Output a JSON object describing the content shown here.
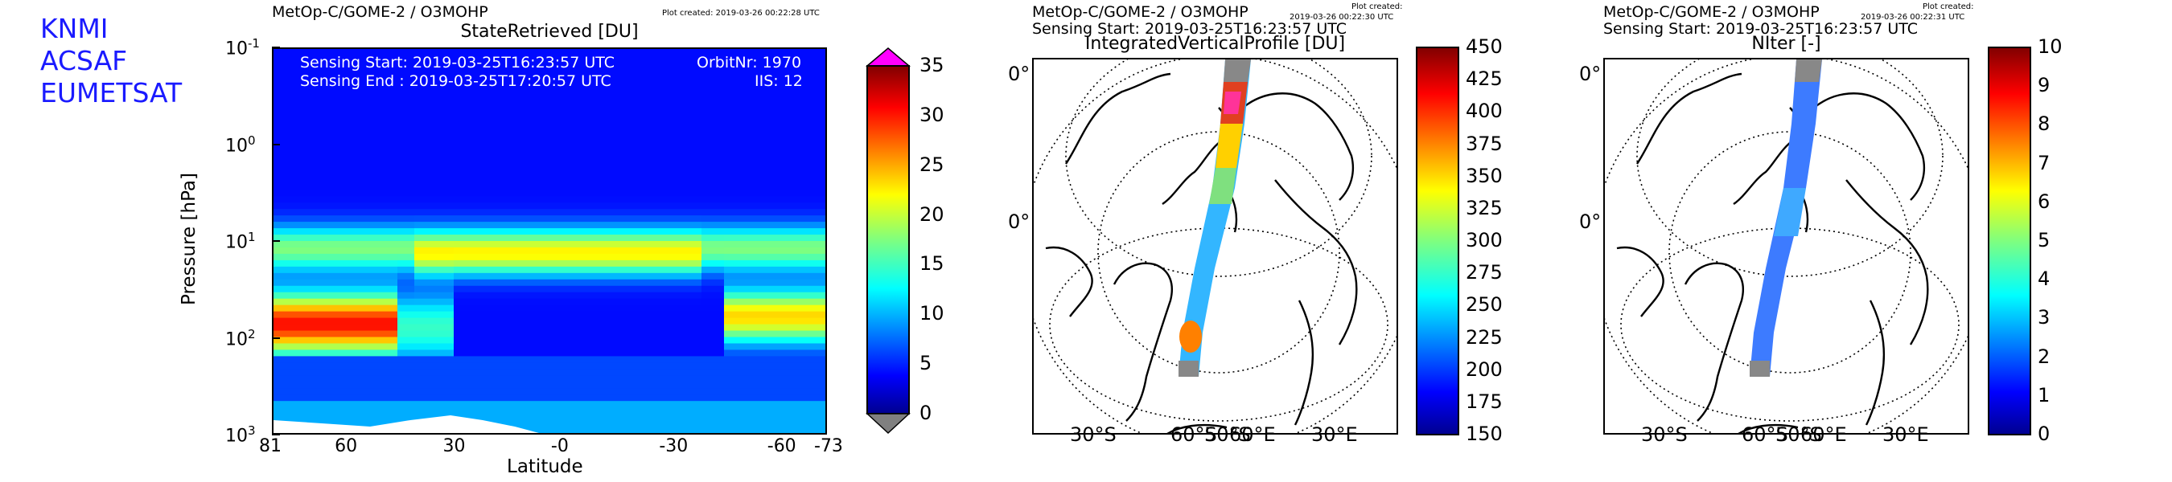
{
  "logo": {
    "lines": [
      "KNMI",
      " ACSAF",
      "EUMETSAT"
    ],
    "color": "#1a1aff"
  },
  "panels": {
    "left": {
      "header": "MetOp-C/GOME-2 / O3MOHP",
      "plot_created": "Plot created: 2019-03-26 00:22:28 UTC",
      "title": "StateRetrieved [DU]",
      "sensing_start": "Sensing Start: 2019-03-25T16:23:57 UTC",
      "sensing_end": "Sensing End  : 2019-03-25T17:20:57 UTC",
      "orbit": "OrbitNr: 1970",
      "iis": "IIS: 12"
    },
    "middle": {
      "header": "MetOp-C/GOME-2 / O3MOHP",
      "sensing_start": "Sensing Start: 2019-03-25T16:23:57 UTC",
      "plot_created_1": "Plot created:",
      "plot_created_2": "2019-03-26 00:22:30 UTC",
      "title": "IntegratedVerticalProfile [DU]",
      "lat_labels": [
        "0°",
        "0°"
      ],
      "lon_labels": [
        "30°S",
        "60°S",
        "50°S",
        "60°E",
        "30°E"
      ]
    },
    "right": {
      "header": "MetOp-C/GOME-2 / O3MOHP",
      "sensing_start": "Sensing Start: 2019-03-25T16:23:57 UTC",
      "plot_created_1": "Plot created:",
      "plot_created_2": "2019-03-26 00:22:31 UTC",
      "title": "NIter [-]",
      "lat_labels": [
        "0°",
        "0°"
      ],
      "lon_labels": [
        "30°S",
        "60°S",
        "50°S",
        "60°E",
        "30°E"
      ]
    }
  },
  "chart_data": [
    {
      "type": "heatmap",
      "title": "StateRetrieved [DU]",
      "xlabel": "Latitude",
      "ylabel": "Pressure [hPa]",
      "x_tick_labels": [
        "81",
        "60",
        "30",
        "-0",
        "-30",
        "-60",
        "-73"
      ],
      "y_tick_labels": [
        "10",
        "10",
        "10",
        "10",
        "10"
      ],
      "y_tick_exponents": [
        "-1",
        "0",
        "1",
        "2",
        "3"
      ],
      "y_scale": "log",
      "ylim": [
        1000,
        0.1
      ],
      "xlim": [
        81,
        -73
      ],
      "colorbar": {
        "min": 0,
        "max": 35,
        "ticks": [
          "0",
          "5",
          "10",
          "15",
          "20",
          "25",
          "30",
          "35"
        ],
        "over_color": "#ff00ff",
        "under_color": "#808080"
      }
    },
    {
      "type": "heatmap",
      "title": "IntegratedVerticalProfile [DU]",
      "colorbar": {
        "min": 150,
        "max": 450,
        "ticks": [
          "150",
          "175",
          "200",
          "225",
          "250",
          "275",
          "300",
          "325",
          "350",
          "375",
          "400",
          "425",
          "450"
        ]
      }
    },
    {
      "type": "heatmap",
      "title": "NIter [-]",
      "colorbar": {
        "min": 0,
        "max": 10,
        "ticks": [
          "0",
          "1",
          "2",
          "3",
          "4",
          "5",
          "6",
          "7",
          "8",
          "9",
          "10"
        ]
      }
    }
  ]
}
